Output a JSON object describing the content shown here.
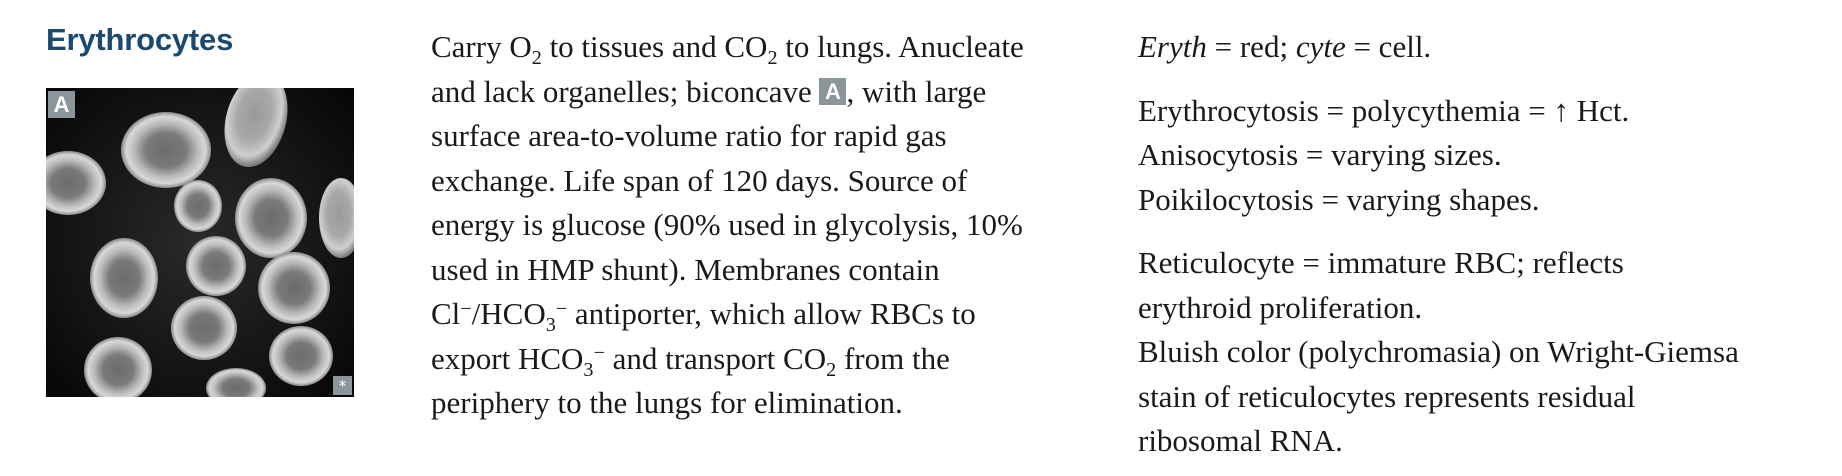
{
  "heading": "Erythrocytes",
  "figure": {
    "label": "A",
    "corner_mark": "*"
  },
  "description": {
    "p1": "Carry O",
    "p2": "2",
    "p3": " to tissues and CO",
    "p4": "2",
    "p5": " to lungs. Anucleate",
    "p6": "and lack organelles; biconcave ",
    "p7": "A",
    "p8": ", with large",
    "p9": "surface area-to-volume ratio for rapid gas",
    "p10": "exchange. Life span of 120 days. Source of",
    "p11": "energy is glucose (90% used in glycolysis, 10%",
    "p12": "used in HMP shunt). Membranes contain",
    "p13": "Cl",
    "p14": "−",
    "p15": "/HCO",
    "p16": "3",
    "p17": "−",
    "p18": " antiporter, which allow RBCs to",
    "p19": "export HCO",
    "p20": "3",
    "p21": "−",
    "p22": " and transport CO",
    "p23": "2",
    "p24": " from the",
    "p25": "periphery to the lungs for elimination."
  },
  "notes": {
    "n1": "Eryth",
    "n2": " = red; ",
    "n3": "cyte",
    "n4": " = cell.",
    "n5": "Erythrocytosis = polycythemia = ",
    "n6": "↑",
    "n7": " Hct.",
    "n8": "Anisocytosis = varying sizes.",
    "n9": "Poikilocytosis = varying shapes.",
    "n10": "Reticulocyte = immature RBC; reflects",
    "n11": "erythroid proliferation.",
    "n12": "Bluish color (polychromasia) on Wright-Giemsa",
    "n13": "stain of reticulocytes represents residual",
    "n14": "ribosomal RNA."
  }
}
